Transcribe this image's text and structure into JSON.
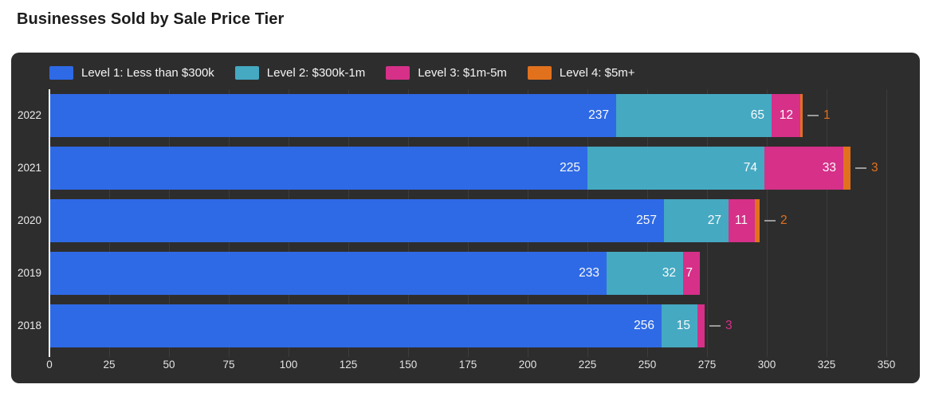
{
  "page": {
    "title": "Businesses Sold by Sale Price Tier"
  },
  "colors": {
    "panel_bg": "#2e2d2d",
    "gridline": "#3c3c3c",
    "axis_line": "#fafafa",
    "tick_label": "#e3e3e3",
    "year_label": "#ececec",
    "legend_text": "#f5f5f5",
    "value_label_inside": "#fafafa",
    "connector_line": "#9a9a9a",
    "title_text": "#1c1c1c",
    "level1": "#2e6ae6",
    "level2": "#45a9c2",
    "level3": "#d63089",
    "level4": "#e2711d"
  },
  "chart_data": {
    "type": "bar",
    "orientation": "horizontal",
    "stacked": true,
    "title": "Businesses Sold by Sale Price Tier",
    "categories": [
      "2022",
      "2021",
      "2020",
      "2019",
      "2018"
    ],
    "series": [
      {
        "name": "Level 1: Less than $300k",
        "color": "#2e6ae6",
        "values": [
          237,
          225,
          257,
          233,
          256
        ]
      },
      {
        "name": "Level 2: $300k-1m",
        "color": "#45a9c2",
        "values": [
          65,
          74,
          27,
          32,
          15
        ]
      },
      {
        "name": "Level 3: $1m-5m",
        "color": "#d63089",
        "values": [
          12,
          33,
          11,
          7,
          3
        ]
      },
      {
        "name": "Level 4: $5m+",
        "color": "#e2711d",
        "values": [
          1,
          3,
          2,
          0,
          0
        ]
      }
    ],
    "x_ticks": [
      0,
      25,
      50,
      75,
      100,
      125,
      150,
      175,
      200,
      225,
      250,
      275,
      300,
      325,
      350
    ],
    "xlim": [
      0,
      364
    ],
    "legend_position": "top",
    "grid": "vertical",
    "value_label_style": "inside right-aligned; drawn outside with gray connector line when segment is too narrow"
  }
}
